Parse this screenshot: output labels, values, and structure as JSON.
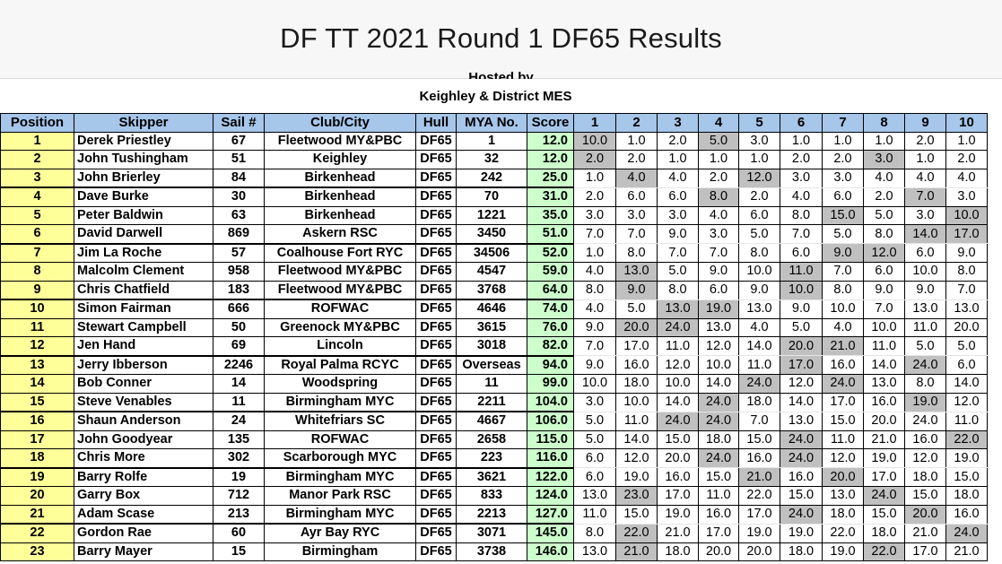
{
  "page": {
    "title": "DF TT 2021 Round 1 DF65 Results",
    "hosted_by": "Hosted by",
    "host": "Keighley & District MES"
  },
  "table": {
    "headers": [
      "Position",
      "Skipper",
      "Sail #",
      "Club/City",
      "Hull",
      "MYA No.",
      "Score",
      "1",
      "2",
      "3",
      "4",
      "5",
      "6",
      "7",
      "8",
      "9",
      "10"
    ],
    "rows": [
      {
        "pos": "1",
        "skipper": "Derek Priestley",
        "sail": "67",
        "club": "Fleetwood MY&PBC",
        "hull": "DF65",
        "mya": "1",
        "score": "12.0",
        "races": [
          "10.0",
          "1.0",
          "2.0",
          "5.0",
          "3.0",
          "1.0",
          "1.0",
          "1.0",
          "2.0",
          "1.0"
        ],
        "disc": [
          0,
          3
        ]
      },
      {
        "pos": "2",
        "skipper": "John Tushingham",
        "sail": "51",
        "club": "Keighley",
        "hull": "DF65",
        "mya": "32",
        "score": "12.0",
        "races": [
          "2.0",
          "2.0",
          "1.0",
          "1.0",
          "1.0",
          "2.0",
          "2.0",
          "3.0",
          "1.0",
          "2.0"
        ],
        "disc": [
          0,
          7
        ]
      },
      {
        "pos": "3",
        "skipper": "John Brierley",
        "sail": "84",
        "club": "Birkenhead",
        "hull": "DF65",
        "mya": "242",
        "score": "25.0",
        "races": [
          "1.0",
          "4.0",
          "4.0",
          "2.0",
          "12.0",
          "3.0",
          "3.0",
          "4.0",
          "4.0",
          "4.0"
        ],
        "disc": [
          1,
          4
        ]
      },
      {
        "pos": "4",
        "skipper": "Dave Burke",
        "sail": "30",
        "club": "Birkenhead",
        "hull": "DF65",
        "mya": "70",
        "score": "31.0",
        "races": [
          "2.0",
          "6.0",
          "6.0",
          "8.0",
          "2.0",
          "4.0",
          "6.0",
          "2.0",
          "7.0",
          "3.0"
        ],
        "disc": [
          3,
          8
        ]
      },
      {
        "pos": "5",
        "skipper": "Peter Baldwin",
        "sail": "63",
        "club": "Birkenhead",
        "hull": "DF65",
        "mya": "1221",
        "score": "35.0",
        "races": [
          "3.0",
          "3.0",
          "3.0",
          "4.0",
          "6.0",
          "8.0",
          "15.0",
          "5.0",
          "3.0",
          "10.0"
        ],
        "disc": [
          6,
          9
        ]
      },
      {
        "pos": "6",
        "skipper": "David Darwell",
        "sail": "869",
        "club": "Askern RSC",
        "hull": "DF65",
        "mya": "3450",
        "score": "51.0",
        "races": [
          "7.0",
          "7.0",
          "9.0",
          "3.0",
          "5.0",
          "7.0",
          "5.0",
          "8.0",
          "14.0",
          "17.0"
        ],
        "disc": [
          8,
          9
        ]
      },
      {
        "pos": "7",
        "skipper": "Jim La Roche",
        "sail": "57",
        "club": "Coalhouse Fort RYC",
        "hull": "DF65",
        "mya": "34506",
        "score": "52.0",
        "races": [
          "1.0",
          "8.0",
          "7.0",
          "7.0",
          "8.0",
          "6.0",
          "9.0",
          "12.0",
          "6.0",
          "9.0"
        ],
        "disc": [
          6,
          7
        ]
      },
      {
        "pos": "8",
        "skipper": "Malcolm Clement",
        "sail": "958",
        "club": "Fleetwood MY&PBC",
        "hull": "DF65",
        "mya": "4547",
        "score": "59.0",
        "races": [
          "4.0",
          "13.0",
          "5.0",
          "9.0",
          "10.0",
          "11.0",
          "7.0",
          "6.0",
          "10.0",
          "8.0"
        ],
        "disc": [
          1,
          5
        ]
      },
      {
        "pos": "9",
        "skipper": "Chris Chatfield",
        "sail": "183",
        "club": "Fleetwood MY&PBC",
        "hull": "DF65",
        "mya": "3768",
        "score": "64.0",
        "races": [
          "8.0",
          "9.0",
          "8.0",
          "6.0",
          "9.0",
          "10.0",
          "8.0",
          "9.0",
          "9.0",
          "7.0"
        ],
        "disc": [
          1,
          5
        ]
      },
      {
        "pos": "10",
        "skipper": "Simon Fairman",
        "sail": "666",
        "club": "ROFWAC",
        "hull": "DF65",
        "mya": "4646",
        "score": "74.0",
        "races": [
          "4.0",
          "5.0",
          "13.0",
          "19.0",
          "13.0",
          "9.0",
          "10.0",
          "7.0",
          "13.0",
          "13.0"
        ],
        "disc": [
          2,
          3
        ]
      },
      {
        "pos": "11",
        "skipper": "Stewart Campbell",
        "sail": "50",
        "club": "Greenock MY&PBC",
        "hull": "DF65",
        "mya": "3615",
        "score": "76.0",
        "races": [
          "9.0",
          "20.0",
          "24.0",
          "13.0",
          "4.0",
          "5.0",
          "4.0",
          "10.0",
          "11.0",
          "20.0"
        ],
        "disc": [
          1,
          2
        ]
      },
      {
        "pos": "12",
        "skipper": "Jen Hand",
        "sail": "69",
        "club": "Lincoln",
        "hull": "DF65",
        "mya": "3018",
        "score": "82.0",
        "races": [
          "7.0",
          "17.0",
          "11.0",
          "12.0",
          "14.0",
          "20.0",
          "21.0",
          "11.0",
          "5.0",
          "5.0"
        ],
        "disc": [
          5,
          6
        ]
      },
      {
        "pos": "13",
        "skipper": "Jerry Ibberson",
        "sail": "2246",
        "club": "Royal Palma RCYC",
        "hull": "DF65",
        "mya": "Overseas",
        "score": "94.0",
        "races": [
          "9.0",
          "16.0",
          "12.0",
          "10.0",
          "11.0",
          "17.0",
          "16.0",
          "14.0",
          "24.0",
          "6.0"
        ],
        "disc": [
          5,
          8
        ]
      },
      {
        "pos": "14",
        "skipper": "Bob Conner",
        "sail": "14",
        "club": "Woodspring",
        "hull": "DF65",
        "mya": "11",
        "score": "99.0",
        "races": [
          "10.0",
          "18.0",
          "10.0",
          "14.0",
          "24.0",
          "12.0",
          "24.0",
          "13.0",
          "8.0",
          "14.0"
        ],
        "disc": [
          4,
          6
        ]
      },
      {
        "pos": "15",
        "skipper": "Steve Venables",
        "sail": "11",
        "club": "Birmingham MYC",
        "hull": "DF65",
        "mya": "2211",
        "score": "104.0",
        "races": [
          "3.0",
          "10.0",
          "14.0",
          "24.0",
          "18.0",
          "14.0",
          "17.0",
          "16.0",
          "19.0",
          "12.0"
        ],
        "disc": [
          3,
          8
        ]
      },
      {
        "pos": "16",
        "skipper": "Shaun Anderson",
        "sail": "24",
        "club": "Whitefriars SC",
        "hull": "DF65",
        "mya": "4667",
        "score": "106.0",
        "races": [
          "5.0",
          "11.0",
          "24.0",
          "24.0",
          "7.0",
          "13.0",
          "15.0",
          "20.0",
          "24.0",
          "11.0"
        ],
        "disc": [
          2,
          3
        ]
      },
      {
        "pos": "17",
        "skipper": "John Goodyear",
        "sail": "135",
        "club": "ROFWAC",
        "hull": "DF65",
        "mya": "2658",
        "score": "115.0",
        "races": [
          "5.0",
          "14.0",
          "15.0",
          "18.0",
          "15.0",
          "24.0",
          "11.0",
          "21.0",
          "16.0",
          "22.0"
        ],
        "disc": [
          5,
          9
        ]
      },
      {
        "pos": "18",
        "skipper": "Chris More",
        "sail": "302",
        "club": "Scarborough MYC",
        "hull": "DF65",
        "mya": "223",
        "score": "116.0",
        "races": [
          "6.0",
          "12.0",
          "20.0",
          "24.0",
          "16.0",
          "24.0",
          "12.0",
          "19.0",
          "12.0",
          "19.0"
        ],
        "disc": [
          3,
          5
        ]
      },
      {
        "pos": "19",
        "skipper": "Barry Rolfe",
        "sail": "19",
        "club": "Birmingham MYC",
        "hull": "DF65",
        "mya": "3621",
        "score": "122.0",
        "races": [
          "6.0",
          "19.0",
          "16.0",
          "15.0",
          "21.0",
          "16.0",
          "20.0",
          "17.0",
          "18.0",
          "15.0"
        ],
        "disc": [
          4,
          6
        ]
      },
      {
        "pos": "20",
        "skipper": "Garry Box",
        "sail": "712",
        "club": "Manor Park RSC",
        "hull": "DF65",
        "mya": "833",
        "score": "124.0",
        "races": [
          "13.0",
          "23.0",
          "17.0",
          "11.0",
          "22.0",
          "15.0",
          "13.0",
          "24.0",
          "15.0",
          "18.0"
        ],
        "disc": [
          1,
          7
        ]
      },
      {
        "pos": "21",
        "skipper": "Adam Scase",
        "sail": "213",
        "club": "Birmingham MYC",
        "hull": "DF65",
        "mya": "2213",
        "score": "127.0",
        "races": [
          "11.0",
          "15.0",
          "19.0",
          "16.0",
          "17.0",
          "24.0",
          "18.0",
          "15.0",
          "20.0",
          "16.0"
        ],
        "disc": [
          5,
          8
        ]
      },
      {
        "pos": "22",
        "skipper": "Gordon Rae",
        "sail": "60",
        "club": "Ayr Bay RYC",
        "hull": "DF65",
        "mya": "3071",
        "score": "145.0",
        "races": [
          "8.0",
          "22.0",
          "21.0",
          "17.0",
          "19.0",
          "19.0",
          "22.0",
          "18.0",
          "21.0",
          "24.0"
        ],
        "disc": [
          1,
          9
        ]
      },
      {
        "pos": "23",
        "skipper": "Barry Mayer",
        "sail": "15",
        "club": "Birmingham",
        "hull": "DF65",
        "mya": "3738",
        "score": "146.0",
        "races": [
          "13.0",
          "21.0",
          "18.0",
          "20.0",
          "20.0",
          "18.0",
          "19.0",
          "22.0",
          "17.0",
          "21.0"
        ],
        "disc": [
          1,
          7
        ]
      }
    ]
  },
  "colors": {
    "header_bg": "#a6c6ea",
    "position_bg": "#ffff99",
    "score_bg": "#ccffcc",
    "discard_bg": "#c0c0c0"
  }
}
